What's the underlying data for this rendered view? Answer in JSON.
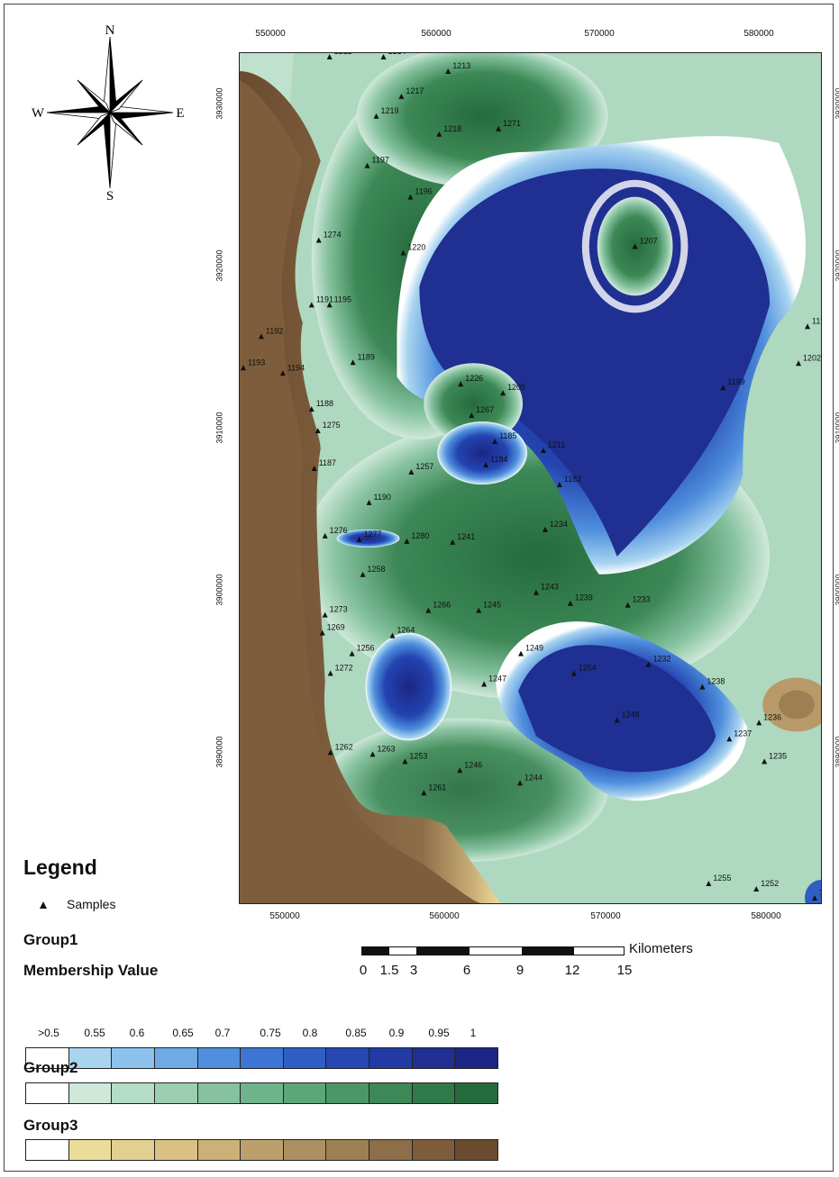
{
  "map": {
    "compass": {
      "n": "N",
      "s": "S",
      "e": "E",
      "w": "W"
    },
    "x_ticks": [
      "550000",
      "560000",
      "570000",
      "580000"
    ],
    "y_ticks": [
      "3930000",
      "3920000",
      "3910000",
      "3900000",
      "3890000"
    ],
    "samples": [
      {
        "id": "1212"
      },
      {
        "id": "1214"
      },
      {
        "id": "1213"
      },
      {
        "id": "1217"
      },
      {
        "id": "1219"
      },
      {
        "id": "1218"
      },
      {
        "id": "1271"
      },
      {
        "id": "1197"
      },
      {
        "id": "1196"
      },
      {
        "id": "1207"
      },
      {
        "id": "1274"
      },
      {
        "id": "1220"
      },
      {
        "id": "1191"
      },
      {
        "id": "1195"
      },
      {
        "id": "1192"
      },
      {
        "id": "1193"
      },
      {
        "id": "1194"
      },
      {
        "id": "1189"
      },
      {
        "id": "1198"
      },
      {
        "id": "1202"
      },
      {
        "id": "1199"
      },
      {
        "id": "1226"
      },
      {
        "id": "1205"
      },
      {
        "id": "1267"
      },
      {
        "id": "1188"
      },
      {
        "id": "1275"
      },
      {
        "id": "1185"
      },
      {
        "id": "1211"
      },
      {
        "id": "1187"
      },
      {
        "id": "1257"
      },
      {
        "id": "1184"
      },
      {
        "id": "1182"
      },
      {
        "id": "1190"
      },
      {
        "id": "1234"
      },
      {
        "id": "1276"
      },
      {
        "id": "1277"
      },
      {
        "id": "1280"
      },
      {
        "id": "1241"
      },
      {
        "id": "1258"
      },
      {
        "id": "1243"
      },
      {
        "id": "1239"
      },
      {
        "id": "1233"
      },
      {
        "id": "1266"
      },
      {
        "id": "1245"
      },
      {
        "id": "1273"
      },
      {
        "id": "1269"
      },
      {
        "id": "1264"
      },
      {
        "id": "1256"
      },
      {
        "id": "1249"
      },
      {
        "id": "1232"
      },
      {
        "id": "1272"
      },
      {
        "id": "1254"
      },
      {
        "id": "1247"
      },
      {
        "id": "1238"
      },
      {
        "id": "1236"
      },
      {
        "id": "1248"
      },
      {
        "id": "1237"
      },
      {
        "id": "1262"
      },
      {
        "id": "1263"
      },
      {
        "id": "1253"
      },
      {
        "id": "1246"
      },
      {
        "id": "1235"
      },
      {
        "id": "1244"
      },
      {
        "id": "1261"
      },
      {
        "id": "1255"
      },
      {
        "id": "1252"
      },
      {
        "id": "1242"
      }
    ]
  },
  "scale": {
    "unit": "Kilometers",
    "labels": [
      "0",
      "1.5",
      "3",
      "6",
      "9",
      "12",
      "15"
    ]
  },
  "legend": {
    "title": "Legend",
    "samples_label": "Samples",
    "group1_label": "Group1",
    "membership_label": "Membership Value",
    "values": [
      ">0.5",
      "0.55",
      "0.6",
      "0.65",
      "0.7",
      "0.75",
      "0.8",
      "0.85",
      "0.9",
      "0.95",
      "1"
    ],
    "group2_label": "Group2",
    "group3_label": "Group3",
    "group1_colors": [
      "#ffffff",
      "#a9d4f0",
      "#8cc2ec",
      "#6fa9e6",
      "#4f8fdd",
      "#3c75d2",
      "#2f5ec4",
      "#2748b3",
      "#223aa3",
      "#1f2f92",
      "#1b2585"
    ],
    "group2_colors": [
      "#ffffff",
      "#cfe8da",
      "#b5dcc6",
      "#9ccfb2",
      "#86c29f",
      "#70b48b",
      "#5ca678",
      "#4b9766",
      "#3d8856",
      "#307949",
      "#256b3c"
    ],
    "group3_colors": [
      "#ffffff",
      "#ecdc9a",
      "#e3cf8f",
      "#d9c184",
      "#cbb078",
      "#bca06c",
      "#ad9061",
      "#9d7f54",
      "#8d6e48",
      "#7d5d3c",
      "#6b4b2f"
    ]
  }
}
